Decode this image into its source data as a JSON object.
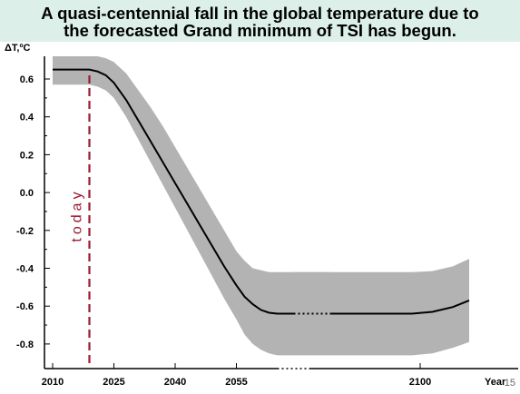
{
  "slide": {
    "page_number": "15"
  },
  "chart_data": {
    "type": "area",
    "title": "A quasi-centennial fall in the global temperature due to the forecasted Grand minimum of TSI has begun.",
    "title_lines": [
      "A quasi-centennial fall in the global temperature due to",
      "the forecasted Grand minimum of TSI has begun."
    ],
    "ylabel": "ΔT,ºC",
    "xlabel": "Year",
    "xlim": [
      2008,
      2124
    ],
    "ylim": [
      -0.93,
      0.72
    ],
    "x_ticks": [
      2010,
      2025,
      2040,
      2055,
      2100
    ],
    "x_tick_labels": [
      "2010",
      "2025",
      "2040",
      "2055",
      "2100"
    ],
    "y_ticks": [
      0.6,
      0.4,
      0.2,
      0.0,
      -0.2,
      -0.4,
      -0.6,
      -0.8
    ],
    "y_tick_labels": [
      "0.6",
      "0.4",
      "0.2",
      "0.0",
      "-0.2",
      "-0.4",
      "-0.6",
      "-0.8"
    ],
    "axis_break_after": 2055,
    "grid": false,
    "today": {
      "x": 2019,
      "label": "today",
      "color": "#9b1b30"
    },
    "series": [
      {
        "x": [
          2010,
          2015,
          2019,
          2021,
          2023,
          2025,
          2028,
          2031,
          2034,
          2037,
          2040,
          2043,
          2046,
          2049,
          2052,
          2055,
          2057,
          2059,
          2061,
          2063,
          2065,
          2067,
          2069
        ],
        "y": [
          0.65,
          0.65,
          0.65,
          0.64,
          0.62,
          0.58,
          0.49,
          0.38,
          0.27,
          0.16,
          0.05,
          -0.06,
          -0.17,
          -0.28,
          -0.39,
          -0.49,
          -0.55,
          -0.59,
          -0.62,
          -0.635,
          -0.64,
          -0.64,
          -0.64
        ],
        "color": "#000000"
      },
      {
        "x": [
          2078,
          2082,
          2088,
          2093,
          2098,
          2103,
          2108,
          2112
        ],
        "y": [
          -0.64,
          -0.64,
          -0.64,
          -0.64,
          -0.64,
          -0.63,
          -0.605,
          -0.57
        ],
        "color": "#000000"
      }
    ],
    "gap_dots": {
      "x": [
        2069,
        2078
      ],
      "y": -0.64
    },
    "band": {
      "x": [
        2010,
        2015,
        2019,
        2021,
        2023,
        2025,
        2028,
        2031,
        2034,
        2037,
        2040,
        2043,
        2046,
        2049,
        2052,
        2055,
        2057,
        2059,
        2061,
        2063,
        2065,
        2067,
        2069
      ],
      "upper": [
        0.72,
        0.72,
        0.72,
        0.72,
        0.71,
        0.69,
        0.63,
        0.54,
        0.45,
        0.35,
        0.24,
        0.13,
        0.02,
        -0.09,
        -0.2,
        -0.31,
        -0.36,
        -0.4,
        -0.41,
        -0.42,
        -0.42,
        -0.42,
        -0.42
      ],
      "lower": [
        0.57,
        0.57,
        0.57,
        0.56,
        0.54,
        0.5,
        0.4,
        0.28,
        0.16,
        0.04,
        -0.08,
        -0.2,
        -0.32,
        -0.44,
        -0.56,
        -0.67,
        -0.75,
        -0.8,
        -0.83,
        -0.85,
        -0.86,
        -0.86,
        -0.86
      ],
      "color": "#b3b3b3"
    },
    "band_right": {
      "x": [
        2078,
        2082,
        2088,
        2093,
        2098,
        2103,
        2108,
        2112
      ],
      "upper": [
        -0.42,
        -0.42,
        -0.42,
        -0.42,
        -0.42,
        -0.415,
        -0.39,
        -0.35
      ],
      "lower": [
        -0.86,
        -0.86,
        -0.86,
        -0.86,
        -0.86,
        -0.85,
        -0.82,
        -0.79
      ]
    }
  }
}
